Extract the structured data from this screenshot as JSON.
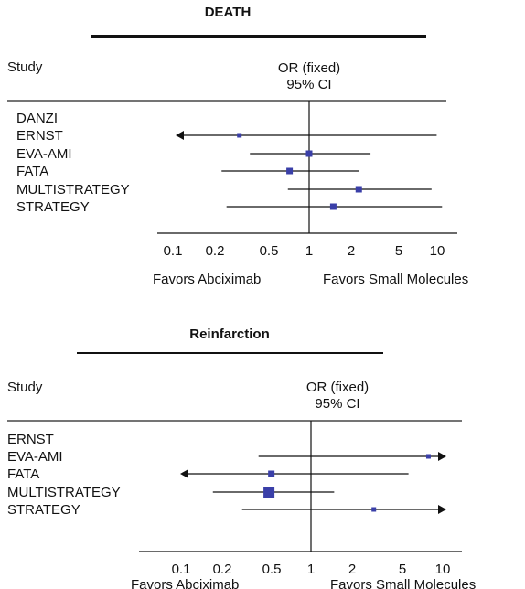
{
  "chart_data": [
    {
      "type": "forest",
      "title": "DEATH",
      "column_header_left": "Study",
      "column_header_right": [
        "OR (fixed)",
        "95% CI"
      ],
      "studies": [
        "DANZI",
        "ERNST",
        "EVA-AMI",
        "FATA",
        "MULTISTRATEGY",
        "STRATEGY"
      ],
      "estimates": [
        null,
        {
          "or": 0.31,
          "lo": 0.05,
          "hi": 8.5
        },
        {
          "or": 1.0,
          "lo": 0.37,
          "hi": 2.8
        },
        {
          "or": 0.72,
          "lo": 0.23,
          "hi": 2.3
        },
        {
          "or": 2.3,
          "lo": 0.7,
          "hi": 7.8
        },
        {
          "or": 1.5,
          "lo": 0.25,
          "hi": 9.3
        }
      ],
      "x_ticks": [
        "0.1",
        "0.2",
        "0.5",
        "1",
        "2",
        "5",
        "10"
      ],
      "x_scale": "log",
      "xlim": [
        0.08,
        10
      ],
      "left_favor": "Favors Abciximab",
      "right_favor": "Favors Small Molecules",
      "colors": {
        "marker": "#3a3fa8",
        "line": "#111111"
      }
    },
    {
      "type": "forest",
      "title": "Reinfarction",
      "column_header_left": "Study",
      "column_header_right": [
        "OR (fixed)",
        "95% CI"
      ],
      "studies": [
        "ERNST",
        "EVA-AMI",
        "FATA",
        "MULTISTRATEGY",
        "STRATEGY"
      ],
      "estimates": [
        null,
        {
          "or": 7.8,
          "lo": 0.4,
          "hi": 12
        },
        {
          "or": 0.5,
          "lo": 0.05,
          "hi": 5.5
        },
        {
          "or": 0.48,
          "lo": 0.18,
          "hi": 1.5
        },
        {
          "or": 3.0,
          "lo": 0.3,
          "hi": 12
        }
      ],
      "x_ticks": [
        "0.1",
        "0.2",
        "0.5",
        "1",
        "2",
        "5",
        "10"
      ],
      "x_scale": "log",
      "xlim": [
        0.08,
        10
      ],
      "left_favor": "Favors Abciximab",
      "right_favor": "Favors Small Molecules",
      "colors": {
        "marker": "#3a3fa8",
        "line": "#111111"
      }
    }
  ]
}
